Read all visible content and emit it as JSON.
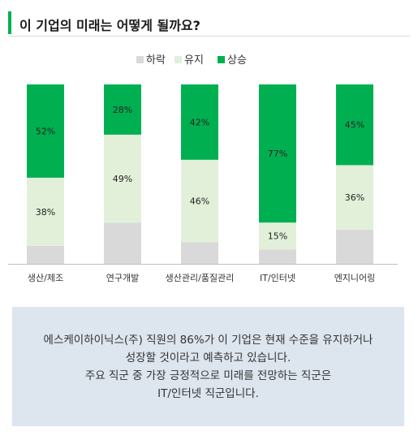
{
  "title": "이 기업의 미래는 어떻게 될까요?",
  "chart_data": {
    "type": "bar",
    "stacked": true,
    "normalized_100": true,
    "categories": [
      "생산/제조",
      "연구개발",
      "생산관리/품질관리",
      "IT/인터넷",
      "엔지니어링"
    ],
    "series": [
      {
        "name": "하락",
        "color": "#d9d9d9",
        "values": [
          10,
          23,
          12,
          8,
          19
        ],
        "labels": [
          "",
          "",
          "",
          "",
          ""
        ]
      },
      {
        "name": "유지",
        "color": "#e2f0d9",
        "values": [
          38,
          49,
          46,
          15,
          36
        ],
        "labels": [
          "38%",
          "49%",
          "46%",
          "15%",
          "36%"
        ]
      },
      {
        "name": "상승",
        "color": "#00b050",
        "values": [
          52,
          28,
          42,
          77,
          45
        ],
        "labels": [
          "52%",
          "28%",
          "42%",
          "77%",
          "45%"
        ]
      }
    ],
    "legend_position": "top-center",
    "ylim": [
      0,
      100
    ],
    "grid": false
  },
  "note": {
    "line1": "에스케이하이닉스(주) 직원의 86%가 이 기업은 현재 수준을 유지하거나",
    "line2": "성장할 것이라고 예측하고 있습니다.",
    "line3": "주요 직군 중 가장 긍정적으로 미래를 전망하는 직군은",
    "line4": "IT/인터넷 직군입니다."
  }
}
